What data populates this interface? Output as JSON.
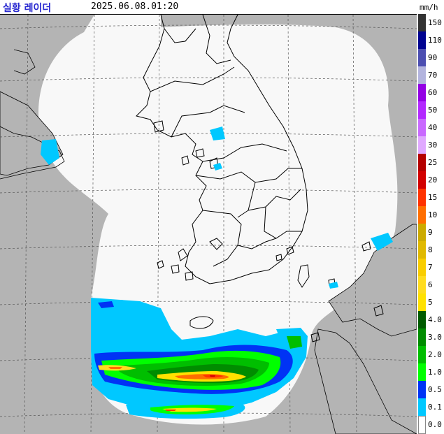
{
  "header": {
    "title": "실황 레이더",
    "timestamp": "2025.06.08.01:20",
    "unit": "mm/h"
  },
  "colors": {
    "outside_coverage": "#b4b4b4",
    "inside_coverage": "#f8f8f8",
    "grid": "#555555",
    "coastline": "#000000"
  },
  "legend": [
    {
      "label": "150",
      "color": "#333333"
    },
    {
      "label": "110",
      "color": "#000390"
    },
    {
      "label": "90",
      "color": "#4c4eb1"
    },
    {
      "label": "70",
      "color": "#b3b4de"
    },
    {
      "label": "60",
      "color": "#9300e4"
    },
    {
      "label": "50",
      "color": "#b329ff"
    },
    {
      "label": "40",
      "color": "#c969ff"
    },
    {
      "label": "30",
      "color": "#e0a9ff"
    },
    {
      "label": "25",
      "color": "#b40000"
    },
    {
      "label": "20",
      "color": "#d20000"
    },
    {
      "label": "15",
      "color": "#ff3200"
    },
    {
      "label": "10",
      "color": "#ff6e00"
    },
    {
      "label": "9",
      "color": "#ccaa00"
    },
    {
      "label": "8",
      "color": "#e0b900"
    },
    {
      "label": "7",
      "color": "#f9cd00"
    },
    {
      "label": "6",
      "color": "#ffdc1f"
    },
    {
      "label": "5",
      "color": "#ffe100"
    },
    {
      "label": "4.0",
      "color": "#005a00"
    },
    {
      "label": "3.0",
      "color": "#008c00"
    },
    {
      "label": "2.0",
      "color": "#00be00"
    },
    {
      "label": "1.0",
      "color": "#00ff00"
    },
    {
      "label": "0.5",
      "color": "#0033f5"
    },
    {
      "label": "0.1",
      "color": "#00c8ff"
    },
    {
      "label": "0.0",
      "color": "#ffffff"
    }
  ]
}
